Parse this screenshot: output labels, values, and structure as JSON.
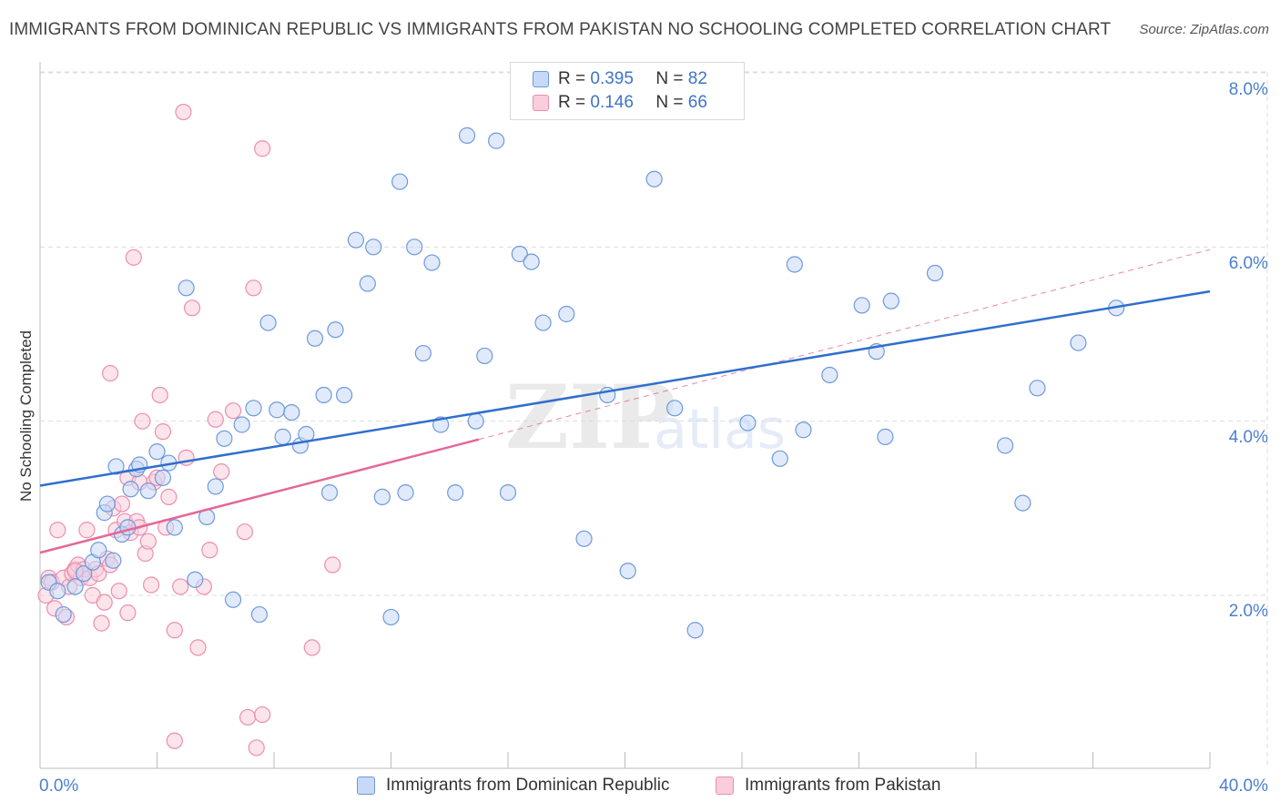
{
  "header": {
    "title": "IMMIGRANTS FROM DOMINICAN REPUBLIC VS IMMIGRANTS FROM PAKISTAN NO SCHOOLING COMPLETED CORRELATION CHART",
    "source": "Source: ZipAtlas.com"
  },
  "watermark": {
    "zip": "ZIP",
    "atlas": "atlas"
  },
  "legend": {
    "series1": {
      "r_label": "R =",
      "r_value": "0.395",
      "n_label": "N =",
      "n_value": "82",
      "name": "Immigrants from Dominican Republic"
    },
    "series2": {
      "r_label": "R =",
      "r_value": "0.146",
      "n_label": "N =",
      "n_value": "66",
      "name": "Immigrants from Pakistan"
    }
  },
  "axes": {
    "x_min_label": "0.0%",
    "x_max_label": "40.0%",
    "y_tick_labels": [
      "2.0%",
      "4.0%",
      "6.0%",
      "8.0%"
    ],
    "y_label": "No Schooling Completed"
  },
  "colors": {
    "blue_fill": "#c7d9f6",
    "blue_stroke": "#6f99dc",
    "blue_line": "#2f6fcc",
    "pink_fill": "#f9cddb",
    "pink_stroke": "#ea8fae",
    "pink_line": "#e46896",
    "grid": "#dddddd"
  },
  "chart_data": {
    "type": "scatter",
    "title": "IMMIGRANTS FROM DOMINICAN REPUBLIC VS IMMIGRANTS FROM PAKISTAN NO SCHOOLING COMPLETED CORRELATION CHART",
    "xlabel": "",
    "ylabel": "No Schooling Completed",
    "xlim": [
      0,
      40
    ],
    "ylim": [
      0,
      8.4
    ],
    "y_ticks": [
      2,
      4,
      6,
      8
    ],
    "grid": true,
    "series": [
      {
        "name": "Immigrants from Dominican Republic",
        "R": 0.395,
        "N": 82,
        "trend": {
          "x": [
            0,
            40
          ],
          "y": [
            3.26,
            5.49
          ],
          "style": "solid"
        },
        "points": [
          [
            0.3,
            2.15
          ],
          [
            0.6,
            2.05
          ],
          [
            0.8,
            1.78
          ],
          [
            1.2,
            2.1
          ],
          [
            1.5,
            2.25
          ],
          [
            1.8,
            2.38
          ],
          [
            2.0,
            2.52
          ],
          [
            2.2,
            2.95
          ],
          [
            2.3,
            3.05
          ],
          [
            2.5,
            2.4
          ],
          [
            2.6,
            3.48
          ],
          [
            2.8,
            2.7
          ],
          [
            3.0,
            2.78
          ],
          [
            3.1,
            3.22
          ],
          [
            3.3,
            3.45
          ],
          [
            3.4,
            3.5
          ],
          [
            3.7,
            3.2
          ],
          [
            4.0,
            3.65
          ],
          [
            4.2,
            3.35
          ],
          [
            4.4,
            3.52
          ],
          [
            4.6,
            2.78
          ],
          [
            5.0,
            5.53
          ],
          [
            5.3,
            2.18
          ],
          [
            5.7,
            2.9
          ],
          [
            6.0,
            3.25
          ],
          [
            6.3,
            3.8
          ],
          [
            6.6,
            1.95
          ],
          [
            6.9,
            3.96
          ],
          [
            7.3,
            4.15
          ],
          [
            7.5,
            1.78
          ],
          [
            7.8,
            5.13
          ],
          [
            8.1,
            4.13
          ],
          [
            8.3,
            3.82
          ],
          [
            8.6,
            4.1
          ],
          [
            8.9,
            3.72
          ],
          [
            9.1,
            3.85
          ],
          [
            9.4,
            4.95
          ],
          [
            9.7,
            4.3
          ],
          [
            9.9,
            3.18
          ],
          [
            10.1,
            5.05
          ],
          [
            10.4,
            4.3
          ],
          [
            10.8,
            6.08
          ],
          [
            11.2,
            5.58
          ],
          [
            11.4,
            6.0
          ],
          [
            11.7,
            3.13
          ],
          [
            12.0,
            1.75
          ],
          [
            12.3,
            6.75
          ],
          [
            12.5,
            3.18
          ],
          [
            12.8,
            6.0
          ],
          [
            13.1,
            4.78
          ],
          [
            13.4,
            5.82
          ],
          [
            13.7,
            3.96
          ],
          [
            14.2,
            3.18
          ],
          [
            14.6,
            7.28
          ],
          [
            14.9,
            4.0
          ],
          [
            15.2,
            4.75
          ],
          [
            15.6,
            7.22
          ],
          [
            16.0,
            3.18
          ],
          [
            16.4,
            5.92
          ],
          [
            16.8,
            5.83
          ],
          [
            17.2,
            5.13
          ],
          [
            18.0,
            5.23
          ],
          [
            18.6,
            2.65
          ],
          [
            19.4,
            4.3
          ],
          [
            20.1,
            2.28
          ],
          [
            21.0,
            6.78
          ],
          [
            21.7,
            4.15
          ],
          [
            22.4,
            1.6
          ],
          [
            24.2,
            3.98
          ],
          [
            25.3,
            3.57
          ],
          [
            25.8,
            5.8
          ],
          [
            26.1,
            3.9
          ],
          [
            27.0,
            4.53
          ],
          [
            28.1,
            5.33
          ],
          [
            28.6,
            4.8
          ],
          [
            28.9,
            3.82
          ],
          [
            29.1,
            5.38
          ],
          [
            30.6,
            5.7
          ],
          [
            33.0,
            3.72
          ],
          [
            33.6,
            3.06
          ],
          [
            34.1,
            4.38
          ],
          [
            35.5,
            4.9
          ],
          [
            36.8,
            5.3
          ]
        ]
      },
      {
        "name": "Immigrants from Pakistan",
        "R": 0.146,
        "N": 66,
        "trend": {
          "x": [
            0,
            15
          ],
          "y": [
            2.49,
            3.79
          ],
          "style": "solid",
          "extended": {
            "x": [
              15,
              40
            ],
            "y": [
              3.79,
              5.97
            ],
            "style": "dashed"
          }
        },
        "points": [
          [
            0.2,
            2.0
          ],
          [
            0.3,
            2.2
          ],
          [
            0.4,
            2.15
          ],
          [
            0.5,
            1.85
          ],
          [
            0.6,
            2.75
          ],
          [
            0.8,
            2.2
          ],
          [
            0.9,
            1.75
          ],
          [
            1.0,
            2.1
          ],
          [
            1.1,
            2.25
          ],
          [
            1.2,
            2.3
          ],
          [
            1.3,
            2.35
          ],
          [
            1.4,
            2.2
          ],
          [
            1.5,
            2.3
          ],
          [
            1.6,
            2.75
          ],
          [
            1.7,
            2.2
          ],
          [
            1.8,
            2.0
          ],
          [
            1.9,
            2.3
          ],
          [
            2.0,
            2.25
          ],
          [
            2.1,
            1.68
          ],
          [
            2.2,
            1.92
          ],
          [
            2.3,
            2.42
          ],
          [
            2.4,
            2.35
          ],
          [
            2.5,
            3.0
          ],
          [
            2.6,
            2.75
          ],
          [
            2.7,
            2.05
          ],
          [
            2.8,
            3.05
          ],
          [
            2.9,
            2.85
          ],
          [
            3.0,
            3.35
          ],
          [
            3.1,
            2.72
          ],
          [
            3.2,
            5.88
          ],
          [
            3.3,
            2.85
          ],
          [
            3.4,
            2.78
          ],
          [
            3.5,
            4.0
          ],
          [
            3.6,
            2.48
          ],
          [
            3.7,
            2.62
          ],
          [
            3.8,
            2.12
          ],
          [
            3.9,
            3.3
          ],
          [
            4.0,
            3.35
          ],
          [
            4.1,
            4.3
          ],
          [
            4.2,
            3.88
          ],
          [
            4.3,
            2.78
          ],
          [
            4.4,
            3.13
          ],
          [
            4.6,
            1.6
          ],
          [
            4.8,
            2.1
          ],
          [
            5.0,
            3.58
          ],
          [
            5.2,
            5.3
          ],
          [
            5.4,
            1.4
          ],
          [
            5.6,
            2.1
          ],
          [
            5.8,
            2.52
          ],
          [
            6.0,
            4.02
          ],
          [
            6.2,
            3.42
          ],
          [
            6.6,
            4.12
          ],
          [
            7.0,
            2.73
          ],
          [
            7.3,
            5.53
          ],
          [
            7.6,
            7.13
          ],
          [
            9.3,
            1.4
          ],
          [
            10.0,
            2.35
          ],
          [
            4.9,
            7.55
          ],
          [
            4.6,
            0.33
          ],
          [
            7.1,
            0.6
          ],
          [
            7.4,
            0.25
          ],
          [
            7.6,
            0.63
          ],
          [
            3.4,
            3.3
          ],
          [
            2.4,
            4.55
          ],
          [
            3.0,
            1.8
          ],
          [
            1.2,
            2.28
          ]
        ]
      }
    ]
  }
}
